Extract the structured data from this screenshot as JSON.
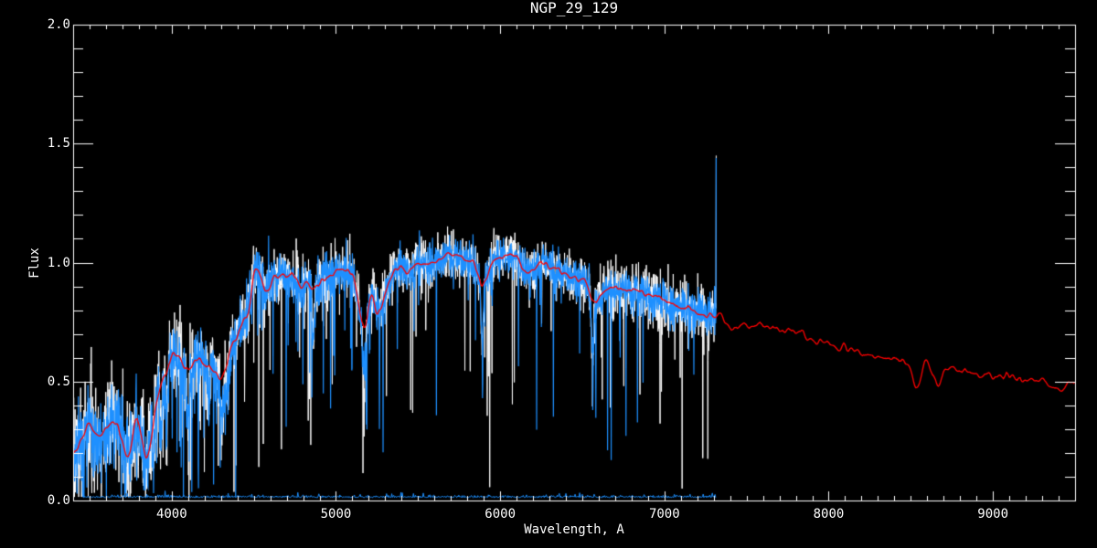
{
  "page": {
    "background": "#000000"
  },
  "chart_data": {
    "type": "line",
    "title": "NGP_29_129",
    "xlabel": "Wavelength, A",
    "ylabel": "Flux",
    "xlim": [
      3400,
      9500
    ],
    "ylim": [
      0.0,
      2.0
    ],
    "x_major_ticks": [
      4000,
      5000,
      6000,
      7000,
      8000,
      9000
    ],
    "x_tick_labels": [
      "4000",
      "5000",
      "6000",
      "7000",
      "8000",
      "9000"
    ],
    "x_minor_step": 100,
    "y_major_ticks": [
      0.0,
      0.5,
      1.0,
      1.5,
      2.0
    ],
    "y_tick_labels": [
      "0.0",
      "0.5",
      "1.0",
      "1.5",
      "2.0"
    ],
    "y_minor_step": 0.1,
    "grid": false,
    "legend": "none",
    "colors": {
      "background": "#000000",
      "axis": "#ffffff",
      "raw_spectrum": "#ffffff",
      "observed_spectrum": "#1e90ff",
      "template_fit": "#ff0000",
      "error_spectrum": "#1e90ff"
    },
    "series": [
      {
        "name": "raw-spectrum",
        "color": "#ffffff",
        "style": "noisy",
        "x_range": [
          3400,
          7315
        ],
        "noise_scale": 1.25,
        "spike_scale": 0.55
      },
      {
        "name": "observed-spectrum",
        "color": "#1e90ff",
        "style": "noisy",
        "x_range": [
          3400,
          7315
        ],
        "noise_scale": 0.95,
        "spike_scale": 0.5
      },
      {
        "name": "template-fit",
        "color": "#ff0000",
        "style": "smooth",
        "x_range": [
          3400,
          9500
        ]
      },
      {
        "name": "error-spectrum",
        "color": "#1e90ff",
        "style": "flat",
        "x_range": [
          3460,
          7315
        ],
        "level": 0.012
      }
    ],
    "continuum_points": [
      [
        3400,
        0.2
      ],
      [
        3450,
        0.26
      ],
      [
        3500,
        0.31
      ],
      [
        3550,
        0.27
      ],
      [
        3600,
        0.3
      ],
      [
        3650,
        0.33
      ],
      [
        3690,
        0.28
      ],
      [
        3730,
        0.18
      ],
      [
        3790,
        0.34
      ],
      [
        3850,
        0.19
      ],
      [
        3920,
        0.45
      ],
      [
        3970,
        0.55
      ],
      [
        4010,
        0.62
      ],
      [
        4060,
        0.58
      ],
      [
        4100,
        0.54
      ],
      [
        4150,
        0.6
      ],
      [
        4200,
        0.58
      ],
      [
        4250,
        0.55
      ],
      [
        4310,
        0.52
      ],
      [
        4360,
        0.64
      ],
      [
        4430,
        0.74
      ],
      [
        4470,
        0.8
      ],
      [
        4510,
        0.97
      ],
      [
        4570,
        0.88
      ],
      [
        4620,
        0.93
      ],
      [
        4680,
        0.95
      ],
      [
        4735,
        0.94
      ],
      [
        4790,
        0.9
      ],
      [
        4830,
        0.92
      ],
      [
        4861,
        0.88
      ],
      [
        4910,
        0.93
      ],
      [
        4960,
        0.95
      ],
      [
        5040,
        0.97
      ],
      [
        5110,
        0.93
      ],
      [
        5171,
        0.72
      ],
      [
        5217,
        0.87
      ],
      [
        5255,
        0.79
      ],
      [
        5330,
        0.93
      ],
      [
        5385,
        0.98
      ],
      [
        5440,
        0.96
      ],
      [
        5500,
        1.0
      ],
      [
        5570,
        0.99
      ],
      [
        5630,
        1.02
      ],
      [
        5720,
        1.03
      ],
      [
        5785,
        1.01
      ],
      [
        5840,
        1.0
      ],
      [
        5893,
        0.9
      ],
      [
        5950,
        1.0
      ],
      [
        6000,
        1.02
      ],
      [
        6100,
        1.02
      ],
      [
        6160,
        0.96
      ],
      [
        6250,
        0.99
      ],
      [
        6350,
        0.97
      ],
      [
        6450,
        0.93
      ],
      [
        6510,
        0.92
      ],
      [
        6573,
        0.84
      ],
      [
        6650,
        0.89
      ],
      [
        6750,
        0.89
      ],
      [
        6870,
        0.87
      ],
      [
        6960,
        0.85
      ],
      [
        7110,
        0.81
      ],
      [
        7200,
        0.79
      ],
      [
        7260,
        0.77
      ],
      [
        7315,
        0.78
      ],
      [
        7370,
        0.75
      ],
      [
        7416,
        0.72
      ],
      [
        7460,
        0.74
      ],
      [
        7550,
        0.735
      ],
      [
        7660,
        0.73
      ],
      [
        7705,
        0.71
      ],
      [
        7760,
        0.715
      ],
      [
        7815,
        0.7
      ],
      [
        7925,
        0.67
      ],
      [
        8000,
        0.66
      ],
      [
        8130,
        0.64
      ],
      [
        8200,
        0.62
      ],
      [
        8300,
        0.6
      ],
      [
        8400,
        0.585
      ],
      [
        8480,
        0.575
      ],
      [
        8545,
        0.48
      ],
      [
        8590,
        0.585
      ],
      [
        8668,
        0.48
      ],
      [
        8705,
        0.555
      ],
      [
        8800,
        0.545
      ],
      [
        8900,
        0.53
      ],
      [
        9000,
        0.525
      ],
      [
        9100,
        0.52
      ],
      [
        9200,
        0.51
      ],
      [
        9300,
        0.5
      ],
      [
        9420,
        0.47
      ],
      [
        9460,
        0.5
      ],
      [
        9500,
        0.49
      ]
    ],
    "absorption_lines": [
      [
        3798,
        0.3,
        6
      ],
      [
        3835,
        0.35,
        6
      ],
      [
        3889,
        0.4,
        7
      ],
      [
        3934,
        0.45,
        8
      ],
      [
        3969,
        0.4,
        8
      ],
      [
        4102,
        0.35,
        8
      ],
      [
        4227,
        0.22,
        5
      ],
      [
        4305,
        0.25,
        10
      ],
      [
        4341,
        0.3,
        7
      ],
      [
        4862,
        0.22,
        7
      ],
      [
        5172,
        0.25,
        9
      ],
      [
        5890,
        0.25,
        7
      ],
      [
        6563,
        0.28,
        7
      ]
    ],
    "artifact_dips": [
      [
        5185,
        0.32
      ],
      [
        5265,
        0.3
      ],
      [
        5893,
        0.43
      ],
      [
        6563,
        0.38
      ]
    ],
    "emission_spike": {
      "wavelength": 7315,
      "peak_flux": 1.44
    },
    "noise_profile": [
      [
        3400,
        0.085
      ],
      [
        3650,
        0.09
      ],
      [
        3900,
        0.08
      ],
      [
        4150,
        0.07
      ],
      [
        4450,
        0.06
      ],
      [
        4800,
        0.05
      ],
      [
        5200,
        0.045
      ],
      [
        5600,
        0.042
      ],
      [
        6000,
        0.04
      ],
      [
        6500,
        0.042
      ],
      [
        7000,
        0.048
      ],
      [
        7315,
        0.055
      ]
    ],
    "noise_seed": 29129
  }
}
